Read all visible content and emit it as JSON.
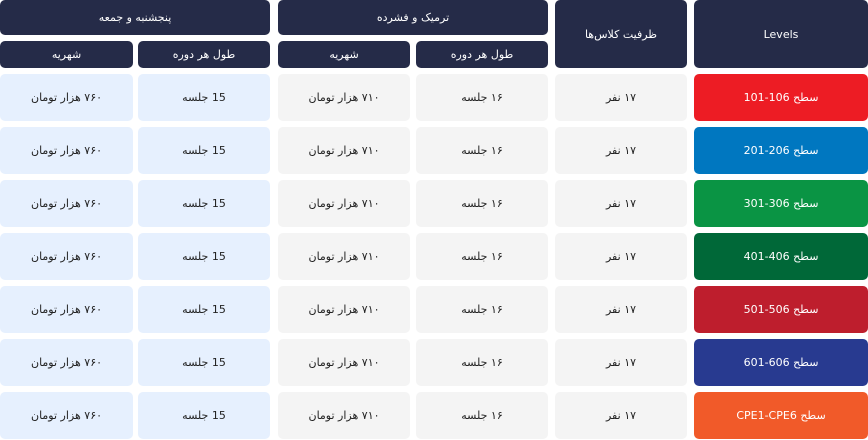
{
  "header": {
    "levels": "Levels",
    "capacity": "ظرفیت کلاس‌ها",
    "term_autumn": "ترمیک و فشرده",
    "term_weekend": "پنجشنبه و جمعه",
    "duration": "طول هر دوره",
    "fee": "شهریه"
  },
  "rows": [
    {
      "level": "سطح 106-101",
      "color": "#ED1C24",
      "capacity": "۱۷ نفر",
      "duration_a": "۱۶ جلسه",
      "fee_a": "۷۱۰ هزار تومان",
      "duration_b": "15 جلسه",
      "fee_b": "۷۶۰ هزار تومان"
    },
    {
      "level": "سطح 206-201",
      "color": "#0077C0",
      "capacity": "۱۷ نفر",
      "duration_a": "۱۶ جلسه",
      "fee_a": "۷۱۰ هزار تومان",
      "duration_b": "15 جلسه",
      "fee_b": "۷۶۰ هزار تومان"
    },
    {
      "level": "سطح 306-301",
      "color": "#0A9444",
      "capacity": "۱۷ نفر",
      "duration_a": "۱۶ جلسه",
      "fee_a": "۷۱۰ هزار تومان",
      "duration_b": "15 جلسه",
      "fee_b": "۷۶۰ هزار تومان"
    },
    {
      "level": "سطح 406-401",
      "color": "#006838",
      "capacity": "۱۷ نفر",
      "duration_a": "۱۶ جلسه",
      "fee_a": "۷۱۰ هزار تومان",
      "duration_b": "15 جلسه",
      "fee_b": "۷۶۰ هزار تومان"
    },
    {
      "level": "سطح 506-501",
      "color": "#BE1E2D",
      "capacity": "۱۷ نفر",
      "duration_a": "۱۶ جلسه",
      "fee_a": "۷۱۰ هزار تومان",
      "duration_b": "15 جلسه",
      "fee_b": "۷۶۰ هزار تومان"
    },
    {
      "level": "سطح 606-601",
      "color": "#283A90",
      "capacity": "۱۷ نفر",
      "duration_a": "۱۶ جلسه",
      "fee_a": "۷۱۰ هزار تومان",
      "duration_b": "15 جلسه",
      "fee_b": "۷۶۰ هزار تومان"
    },
    {
      "level": "سطح CPE1-CPE6",
      "color": "#F15A29",
      "capacity": "۱۷ نفر",
      "duration_a": "۱۶ جلسه",
      "fee_a": "۷۱۰ هزار تومان",
      "duration_b": "15 جلسه",
      "fee_b": "۷۶۰ هزار تومان"
    }
  ]
}
